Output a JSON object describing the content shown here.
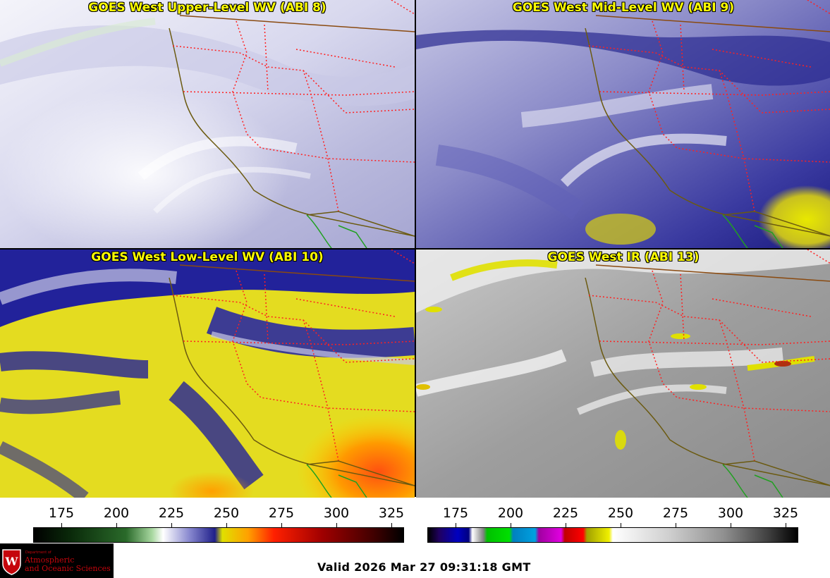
{
  "panels": [
    {
      "title": "GOES West Upper-Level WV (ABI 8)"
    },
    {
      "title": "GOES West Mid-Level WV (ABI 9)"
    },
    {
      "title": "GOES West Low-Level WV (ABI 10)"
    },
    {
      "title": "GOES West IR (ABI 13)"
    }
  ],
  "colorbars": {
    "left_ticks": [
      "175",
      "200",
      "225",
      "250",
      "275",
      "300",
      "325"
    ],
    "right_ticks": [
      "175",
      "200",
      "225",
      "250",
      "275",
      "300",
      "325"
    ]
  },
  "valid_time": "Valid 2026 Mar 27 09:31:18 GMT",
  "logo": {
    "dept": "Department of",
    "line1": "Atmospheric",
    "line2": "and Oceanic Sciences"
  },
  "colors": {
    "border_state": "#ff2020",
    "border_country": "#8a4a10",
    "coast": "#6b5a10",
    "mexico_coast": "#20a020",
    "title": "#ffff00"
  }
}
